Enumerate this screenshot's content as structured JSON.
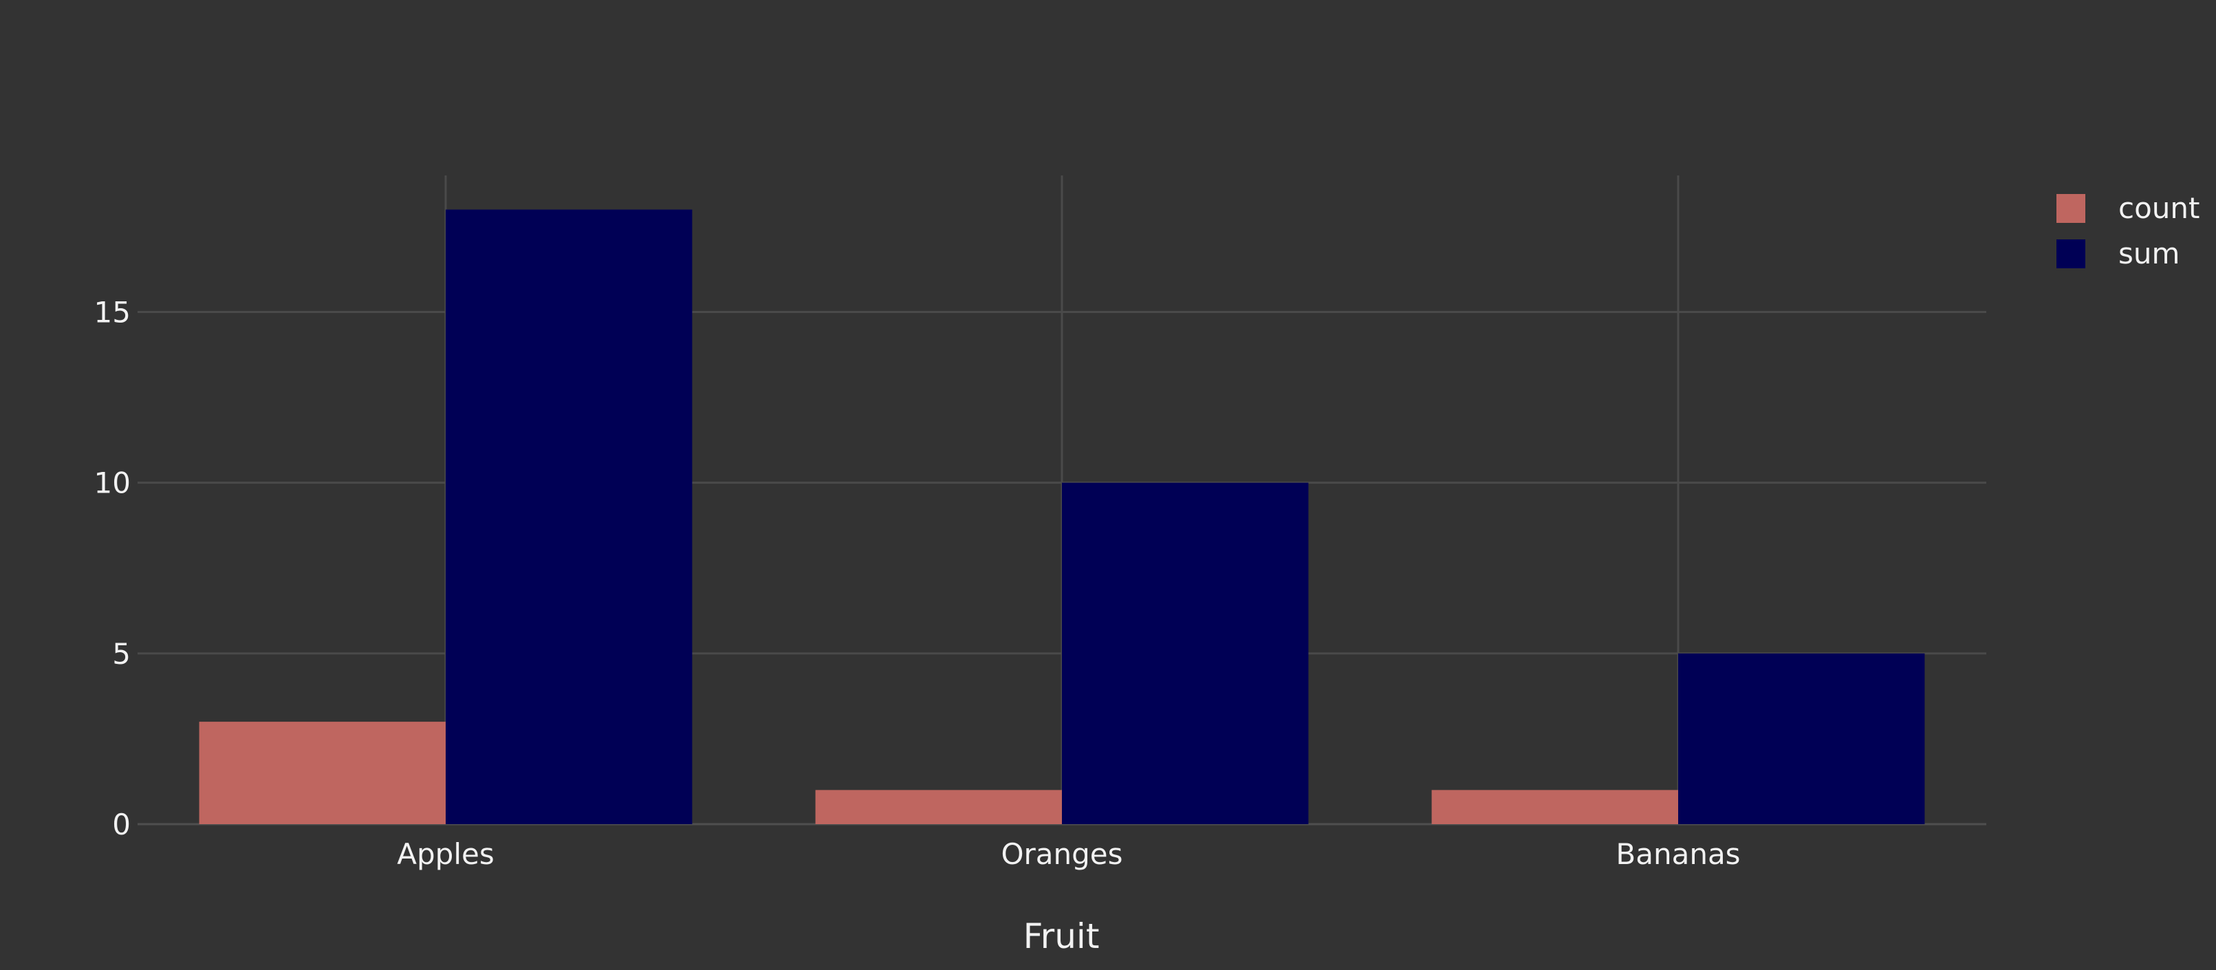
{
  "chart_data": {
    "type": "bar",
    "title": "",
    "xlabel": "Fruit",
    "ylabel": "",
    "categories": [
      "Apples",
      "Oranges",
      "Bananas"
    ],
    "series": [
      {
        "name": "count",
        "values": [
          3,
          1,
          1
        ],
        "color": "#bf6660"
      },
      {
        "name": "sum",
        "values": [
          18,
          10,
          5
        ],
        "color": "#000055"
      }
    ],
    "ylim": [
      0,
      19
    ],
    "yticks": [
      0,
      5,
      10,
      15
    ],
    "grid": true,
    "legend_position": "top-right",
    "barmode": "group"
  },
  "colors": {
    "background": "#333333",
    "grid": "#4a4a4a",
    "text": "#f2f2f2"
  }
}
